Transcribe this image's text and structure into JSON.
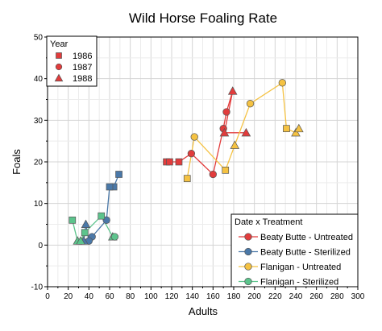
{
  "chart_data": {
    "type": "scatter",
    "title": "Wild Horse Foaling Rate",
    "xlabel": "Adults",
    "ylabel": "Foals",
    "xlim": [
      0,
      300
    ],
    "ylim": [
      -10,
      50
    ],
    "x_ticks": [
      0,
      20,
      40,
      60,
      80,
      100,
      120,
      140,
      160,
      180,
      200,
      220,
      240,
      260,
      280,
      300
    ],
    "y_ticks": [
      -10,
      0,
      10,
      20,
      30,
      40,
      50
    ],
    "grid": true,
    "year_legend": {
      "title": "Year",
      "placement": "top-left",
      "items": [
        {
          "label": "1986",
          "marker": "square"
        },
        {
          "label": "1987",
          "marker": "circle"
        },
        {
          "label": "1988",
          "marker": "triangle"
        }
      ]
    },
    "group_legend": {
      "title": "Date x Treatment",
      "placement": "bottom-right",
      "items": [
        "Beaty Butte - Untreated",
        "Beaty Butte - Sterilized",
        "Flanigan - Untreated",
        "Flanigan - Sterilized"
      ]
    },
    "series": [
      {
        "name": "Beaty Butte - Untreated",
        "color": "#e23c3c",
        "points": [
          {
            "x": 115,
            "y": 20,
            "year": "1986"
          },
          {
            "x": 118,
            "y": 20,
            "year": "1986"
          },
          {
            "x": 127,
            "y": 20,
            "year": "1986"
          },
          {
            "x": 139,
            "y": 22,
            "year": "1987"
          },
          {
            "x": 160,
            "y": 17,
            "year": "1987"
          },
          {
            "x": 170,
            "y": 28,
            "year": "1987"
          },
          {
            "x": 173,
            "y": 32,
            "year": "1987"
          },
          {
            "x": 179,
            "y": 37,
            "year": "1988"
          },
          {
            "x": 171,
            "y": 27,
            "year": "1988"
          },
          {
            "x": 192,
            "y": 27,
            "year": "1988"
          }
        ]
      },
      {
        "name": "Beaty Butte - Sterilized",
        "color": "#4a78a8",
        "points": [
          {
            "x": 69,
            "y": 17,
            "year": "1986"
          },
          {
            "x": 64,
            "y": 14,
            "year": "1986"
          },
          {
            "x": 60,
            "y": 14,
            "year": "1986"
          },
          {
            "x": 57,
            "y": 6,
            "year": "1987"
          },
          {
            "x": 43,
            "y": 2,
            "year": "1987"
          },
          {
            "x": 40,
            "y": 1,
            "year": "1987"
          },
          {
            "x": 37,
            "y": 5,
            "year": "1988"
          },
          {
            "x": 35,
            "y": 1,
            "year": "1988"
          }
        ]
      },
      {
        "name": "Flanigan - Untreated",
        "color": "#f5c242",
        "points": [
          {
            "x": 135,
            "y": 16,
            "year": "1986"
          },
          {
            "x": 142,
            "y": 26,
            "year": "1987"
          },
          {
            "x": 172,
            "y": 18,
            "year": "1986"
          },
          {
            "x": 181,
            "y": 24,
            "year": "1988"
          },
          {
            "x": 196,
            "y": 34,
            "year": "1987"
          },
          {
            "x": 227,
            "y": 39,
            "year": "1987"
          },
          {
            "x": 231,
            "y": 28,
            "year": "1986"
          },
          {
            "x": 240,
            "y": 27,
            "year": "1988"
          },
          {
            "x": 243,
            "y": 28,
            "year": "1988"
          }
        ]
      },
      {
        "name": "Flanigan - Sterilized",
        "color": "#5cc48c",
        "points": [
          {
            "x": 24,
            "y": 6,
            "year": "1986"
          },
          {
            "x": 29,
            "y": 1,
            "year": "1988"
          },
          {
            "x": 32,
            "y": 1,
            "year": "1988"
          },
          {
            "x": 36,
            "y": 3,
            "year": "1986"
          },
          {
            "x": 52,
            "y": 7,
            "year": "1986"
          },
          {
            "x": 63,
            "y": 2,
            "year": "1988"
          },
          {
            "x": 65,
            "y": 2,
            "year": "1987"
          }
        ]
      }
    ]
  }
}
